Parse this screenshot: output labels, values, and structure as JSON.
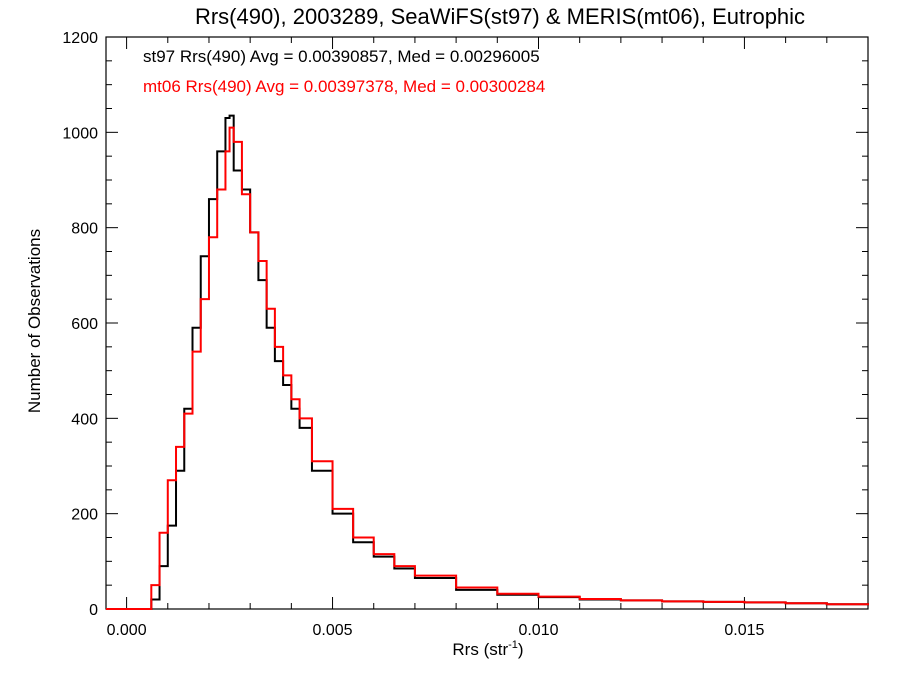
{
  "chart_data": {
    "type": "line",
    "subtype": "step-histogram",
    "title": "Rrs(490), 2003289, SeaWiFS(st97) & MERIS(mt06), Eutrophic",
    "xlabel_main": "Rrs (str",
    "xlabel_sup": "-1",
    "xlabel_tail": ")",
    "ylabel": "Number of Observations",
    "xlim": [
      -0.0005,
      0.018
    ],
    "ylim": [
      0,
      1200
    ],
    "x_ticks": [
      0.0,
      0.005,
      0.01,
      0.015
    ],
    "x_tick_labels": [
      "0.000",
      "0.005",
      "0.010",
      "0.015"
    ],
    "y_ticks": [
      0,
      200,
      400,
      600,
      800,
      1000,
      1200
    ],
    "y_tick_labels": [
      "0",
      "200",
      "400",
      "600",
      "800",
      "1000",
      "1200"
    ],
    "grid": false,
    "annotations": [
      {
        "text": "st97 Rrs(490) Avg = 0.00390857, Med = 0.00296005",
        "color": "#000000"
      },
      {
        "text": "mt06 Rrs(490) Avg = 0.00397378, Med = 0.00300284",
        "color": "#ff0000"
      }
    ],
    "series": [
      {
        "color": "#000000",
        "x": [
          -0.0005,
          0.0004,
          0.0006,
          0.0008,
          0.001,
          0.0012,
          0.0014,
          0.0016,
          0.0018,
          0.002,
          0.0022,
          0.0024,
          0.0025,
          0.0026,
          0.0028,
          0.003,
          0.0032,
          0.0034,
          0.0036,
          0.0038,
          0.004,
          0.0042,
          0.0045,
          0.005,
          0.0055,
          0.006,
          0.0065,
          0.007,
          0.008,
          0.009,
          0.01,
          0.011,
          0.012,
          0.013,
          0.014,
          0.015,
          0.016,
          0.017,
          0.018
        ],
        "y": [
          0,
          0,
          20,
          90,
          175,
          290,
          420,
          590,
          740,
          860,
          960,
          1030,
          1035,
          920,
          880,
          790,
          690,
          590,
          520,
          470,
          420,
          380,
          290,
          200,
          140,
          110,
          85,
          65,
          40,
          30,
          25,
          20,
          18,
          16,
          15,
          14,
          12,
          10,
          8
        ]
      },
      {
        "color": "#ff0000",
        "x": [
          -0.0005,
          0.0004,
          0.0006,
          0.0008,
          0.001,
          0.0012,
          0.0014,
          0.0016,
          0.0018,
          0.002,
          0.0022,
          0.0024,
          0.0025,
          0.0026,
          0.0028,
          0.003,
          0.0032,
          0.0034,
          0.0036,
          0.0038,
          0.004,
          0.0042,
          0.0045,
          0.005,
          0.0055,
          0.006,
          0.0065,
          0.007,
          0.008,
          0.009,
          0.01,
          0.011,
          0.012,
          0.013,
          0.014,
          0.015,
          0.016,
          0.017,
          0.018
        ],
        "y": [
          0,
          0,
          50,
          160,
          270,
          340,
          410,
          540,
          650,
          780,
          880,
          960,
          1010,
          980,
          870,
          790,
          730,
          630,
          550,
          490,
          440,
          400,
          310,
          210,
          150,
          115,
          90,
          70,
          45,
          32,
          26,
          21,
          18,
          16,
          15,
          14,
          12,
          10,
          8
        ]
      }
    ]
  }
}
